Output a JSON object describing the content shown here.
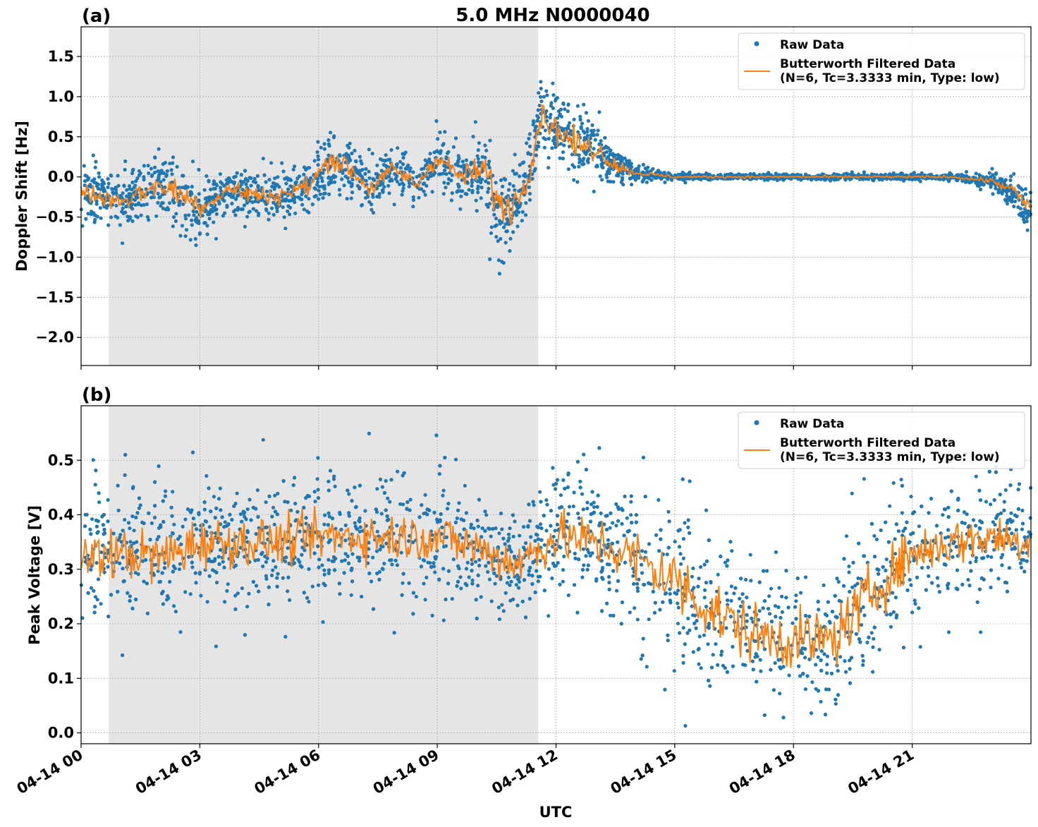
{
  "figure": {
    "title": "5.0 MHz N0000040",
    "xlabel": "UTC",
    "x_tick_labels": [
      "04-14 00",
      "04-14 03",
      "04-14 06",
      "04-14 09",
      "04-14 12",
      "04-14 15",
      "04-14 18",
      "04-14 21"
    ]
  },
  "colors": {
    "raw": "#1f77b4",
    "filtered": "#ff7f0e",
    "shade": "#e5e5e5",
    "grid": "#b0b0b0"
  },
  "chart_data": [
    {
      "type": "scatter",
      "panel_label": "(a)",
      "title": "5.0 MHz N0000040",
      "xlabel": "",
      "ylabel": "Doppler Shift [Hz]",
      "x_unit": "hours UTC on 04-14",
      "xlim": [
        0,
        24
      ],
      "ylim": [
        -2.35,
        1.87
      ],
      "y_ticks": [
        1.5,
        1.0,
        0.5,
        0.0,
        -0.5,
        -1.0,
        -1.5,
        -2.0
      ],
      "y_tick_labels": [
        "1.5",
        "1.0",
        "0.5",
        "0.0",
        "−0.5",
        "−1.0",
        "−1.5",
        "−2.0"
      ],
      "grid": true,
      "legend_position": "top-right",
      "shaded_interval": [
        0.7,
        11.55
      ],
      "series": [
        {
          "name": "Raw Data",
          "kind": "scatter",
          "x": [
            0,
            0.5,
            1,
            1.5,
            2,
            2.5,
            2.9,
            3.3,
            3.7,
            4.2,
            4.7,
            5.2,
            5.8,
            6.3,
            6.8,
            7.3,
            7.9,
            8.5,
            9.0,
            9.6,
            10.2,
            10.6,
            11.0,
            11.4,
            11.6,
            12.0,
            12.5,
            13.0,
            13.5,
            14.0,
            15,
            16,
            17,
            18,
            19,
            20,
            21,
            22,
            23,
            23.5,
            24
          ],
          "y": [
            -0.2,
            -0.25,
            -0.3,
            -0.2,
            -0.1,
            -0.2,
            -0.55,
            -0.3,
            -0.15,
            -0.2,
            -0.25,
            -0.2,
            -0.1,
            0.15,
            0.1,
            -0.15,
            0.1,
            -0.1,
            0.25,
            0.0,
            0.1,
            -0.55,
            -0.3,
            0.2,
            0.8,
            0.6,
            0.4,
            0.35,
            0.15,
            0.05,
            0.0,
            0.0,
            0.0,
            0.0,
            0.0,
            0.0,
            0.0,
            0.0,
            -0.05,
            -0.2,
            -0.45
          ],
          "spread": [
            0.45,
            0.35,
            0.35,
            0.4,
            0.4,
            0.45,
            0.55,
            0.35,
            0.3,
            0.3,
            0.3,
            0.3,
            0.35,
            0.4,
            0.4,
            0.3,
            0.3,
            0.25,
            0.3,
            0.35,
            0.5,
            0.75,
            0.55,
            0.5,
            0.6,
            0.5,
            0.45,
            0.4,
            0.25,
            0.1,
            0.05,
            0.04,
            0.04,
            0.04,
            0.04,
            0.04,
            0.04,
            0.04,
            0.1,
            0.2,
            0.35
          ]
        },
        {
          "name": "Butterworth Filtered Data\n(N=6, Tc=3.3333 min, Type: low)",
          "kind": "line",
          "x": [
            0,
            0.5,
            1,
            1.5,
            2,
            2.5,
            2.9,
            3.3,
            3.7,
            4.2,
            4.7,
            5.2,
            5.8,
            6.3,
            6.8,
            7.3,
            7.9,
            8.5,
            9.0,
            9.6,
            10.2,
            10.6,
            11.0,
            11.4,
            11.6,
            12.0,
            12.5,
            13.0,
            13.5,
            14.0,
            15,
            16,
            17,
            18,
            19,
            20,
            21,
            22,
            23,
            23.5,
            24
          ],
          "y": [
            -0.2,
            -0.25,
            -0.3,
            -0.2,
            -0.1,
            -0.2,
            -0.35,
            -0.3,
            -0.15,
            -0.2,
            -0.25,
            -0.2,
            -0.1,
            0.25,
            0.1,
            -0.15,
            0.1,
            -0.1,
            0.25,
            0.0,
            0.1,
            -0.4,
            -0.3,
            0.2,
            0.8,
            0.6,
            0.4,
            0.35,
            0.15,
            0.05,
            0.0,
            0.0,
            0.0,
            0.0,
            0.0,
            0.0,
            0.0,
            0.0,
            -0.05,
            -0.15,
            -0.4
          ]
        }
      ]
    },
    {
      "type": "scatter",
      "panel_label": "(b)",
      "title": "",
      "xlabel": "UTC",
      "ylabel": "Peak Voltage [V]",
      "x_unit": "hours UTC on 04-14",
      "xlim": [
        0,
        24
      ],
      "ylim": [
        -0.02,
        0.6
      ],
      "y_ticks": [
        0.5,
        0.4,
        0.3,
        0.2,
        0.1,
        0.0
      ],
      "y_tick_labels": [
        "0.5",
        "0.4",
        "0.3",
        "0.2",
        "0.1",
        "0.0"
      ],
      "grid": true,
      "legend_position": "top-right",
      "shaded_interval": [
        0.7,
        11.55
      ],
      "series": [
        {
          "name": "Raw Data",
          "kind": "scatter",
          "x": [
            0,
            1,
            2,
            3,
            4,
            5,
            6,
            7,
            8,
            9,
            10,
            11,
            12,
            13,
            14,
            15,
            16,
            17,
            18,
            19,
            20,
            21,
            22,
            23,
            24
          ],
          "y": [
            0.33,
            0.34,
            0.33,
            0.35,
            0.35,
            0.35,
            0.36,
            0.36,
            0.36,
            0.36,
            0.34,
            0.31,
            0.36,
            0.35,
            0.32,
            0.28,
            0.22,
            0.18,
            0.17,
            0.17,
            0.26,
            0.33,
            0.35,
            0.36,
            0.37
          ],
          "spread": [
            0.13,
            0.13,
            0.14,
            0.13,
            0.12,
            0.12,
            0.12,
            0.12,
            0.12,
            0.12,
            0.12,
            0.12,
            0.13,
            0.13,
            0.15,
            0.17,
            0.16,
            0.15,
            0.15,
            0.15,
            0.15,
            0.13,
            0.12,
            0.12,
            0.11
          ]
        },
        {
          "name": "Butterworth Filtered Data\n(N=6, Tc=3.3333 min, Type: low)",
          "kind": "line",
          "x": [
            0,
            1,
            2,
            3,
            4,
            5,
            6,
            7,
            8,
            9,
            10,
            11,
            12,
            13,
            14,
            15,
            16,
            17,
            18,
            19,
            20,
            21,
            22,
            23,
            24
          ],
          "y": [
            0.32,
            0.33,
            0.32,
            0.35,
            0.35,
            0.35,
            0.36,
            0.36,
            0.36,
            0.36,
            0.34,
            0.31,
            0.36,
            0.35,
            0.32,
            0.28,
            0.22,
            0.18,
            0.17,
            0.17,
            0.26,
            0.33,
            0.35,
            0.36,
            0.35
          ]
        }
      ]
    }
  ]
}
